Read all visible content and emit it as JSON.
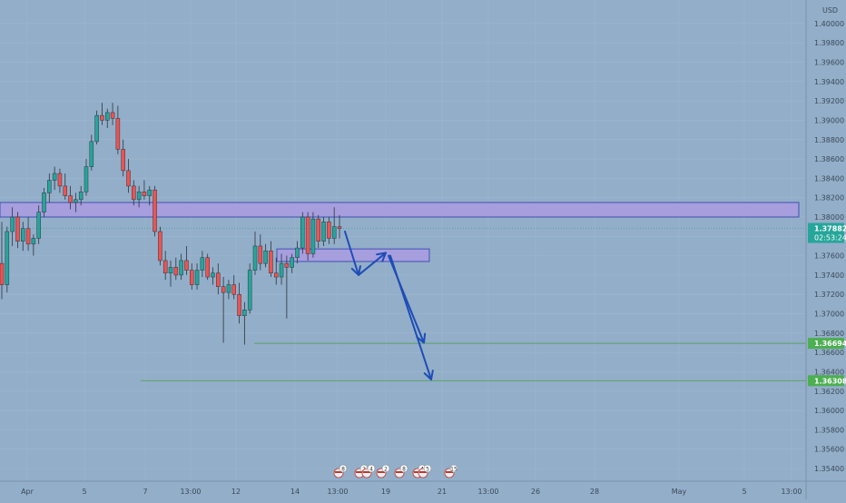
{
  "chart_data": {
    "type": "candlestick",
    "currency": "USD",
    "ylim": [
      1.353,
      1.4008
    ],
    "y_ticks": [
      "1.40000",
      "1.39800",
      "1.39600",
      "1.39400",
      "1.39200",
      "1.39000",
      "1.38800",
      "1.38600",
      "1.38400",
      "1.38200",
      "1.38000",
      "1.37800",
      "1.37600",
      "1.37400",
      "1.37200",
      "1.37000",
      "1.36800",
      "1.36600",
      "1.36400",
      "1.36200",
      "1.36000",
      "1.35800",
      "1.35600",
      "1.35400"
    ],
    "x_ticks": [
      "Apr",
      "5",
      "7",
      "13:00",
      "12",
      "14",
      "13:00",
      "19",
      "21",
      "13:00",
      "26",
      "28",
      "May",
      "5",
      "13:00"
    ],
    "price_labels": {
      "current": {
        "value": "1.37882",
        "countdown": "02:53:24",
        "price": 1.37882
      },
      "level_1": {
        "value": "1.36694",
        "price": 1.36694
      },
      "level_2": {
        "value": "1.36308",
        "price": 1.36308
      }
    },
    "zones": [
      {
        "name": "resistance-zone",
        "low": 1.38,
        "high": 1.3815
      },
      {
        "name": "support-zone",
        "low": 1.3754,
        "high": 1.3767
      }
    ],
    "candles": [
      [
        1.3752,
        1.3795,
        1.3715,
        1.373
      ],
      [
        1.373,
        1.379,
        1.3722,
        1.3785
      ],
      [
        1.3785,
        1.381,
        1.377,
        1.38
      ],
      [
        1.38,
        1.3805,
        1.3768,
        1.3775
      ],
      [
        1.3775,
        1.3795,
        1.3765,
        1.3788
      ],
      [
        1.3788,
        1.38,
        1.3765,
        1.3772
      ],
      [
        1.3772,
        1.3782,
        1.376,
        1.3778
      ],
      [
        1.3778,
        1.3812,
        1.3772,
        1.3805
      ],
      [
        1.3805,
        1.383,
        1.38,
        1.3825
      ],
      [
        1.3825,
        1.3845,
        1.3815,
        1.3838
      ],
      [
        1.3838,
        1.3852,
        1.3828,
        1.3845
      ],
      [
        1.3845,
        1.385,
        1.3825,
        1.3832
      ],
      [
        1.3832,
        1.3845,
        1.3818,
        1.3822
      ],
      [
        1.3822,
        1.3832,
        1.3808,
        1.3815
      ],
      [
        1.3815,
        1.3825,
        1.3805,
        1.3818
      ],
      [
        1.3818,
        1.3832,
        1.3812,
        1.3826
      ],
      [
        1.3826,
        1.386,
        1.3822,
        1.3852
      ],
      [
        1.3852,
        1.3885,
        1.3848,
        1.3878
      ],
      [
        1.3878,
        1.391,
        1.3875,
        1.3905
      ],
      [
        1.3905,
        1.3918,
        1.3895,
        1.39
      ],
      [
        1.39,
        1.3912,
        1.3892,
        1.3908
      ],
      [
        1.3908,
        1.3918,
        1.3895,
        1.3902
      ],
      [
        1.3902,
        1.3915,
        1.3865,
        1.387
      ],
      [
        1.387,
        1.388,
        1.3842,
        1.3848
      ],
      [
        1.3848,
        1.386,
        1.3825,
        1.3832
      ],
      [
        1.3832,
        1.3838,
        1.3812,
        1.3818
      ],
      [
        1.3818,
        1.3832,
        1.381,
        1.3826
      ],
      [
        1.3826,
        1.3838,
        1.3818,
        1.3822
      ],
      [
        1.3822,
        1.3832,
        1.3812,
        1.3828
      ],
      [
        1.3828,
        1.3832,
        1.378,
        1.3785
      ],
      [
        1.3785,
        1.379,
        1.375,
        1.3755
      ],
      [
        1.3755,
        1.3765,
        1.3735,
        1.3742
      ],
      [
        1.3742,
        1.3755,
        1.3728,
        1.3748
      ],
      [
        1.3748,
        1.3758,
        1.3735,
        1.374
      ],
      [
        1.374,
        1.3762,
        1.3735,
        1.3755
      ],
      [
        1.3755,
        1.377,
        1.374,
        1.3745
      ],
      [
        1.3745,
        1.3752,
        1.3725,
        1.373
      ],
      [
        1.373,
        1.3752,
        1.3725,
        1.3745
      ],
      [
        1.3745,
        1.3765,
        1.3738,
        1.3758
      ],
      [
        1.3758,
        1.3762,
        1.3735,
        1.3738
      ],
      [
        1.3738,
        1.3748,
        1.373,
        1.3742
      ],
      [
        1.3742,
        1.3752,
        1.372,
        1.3728
      ],
      [
        1.3728,
        1.3738,
        1.367,
        1.3722
      ],
      [
        1.3722,
        1.3735,
        1.3715,
        1.373
      ],
      [
        1.373,
        1.374,
        1.3715,
        1.372
      ],
      [
        1.372,
        1.3732,
        1.369,
        1.3698
      ],
      [
        1.3698,
        1.3712,
        1.3668,
        1.3704
      ],
      [
        1.3704,
        1.3752,
        1.37,
        1.3745
      ],
      [
        1.3745,
        1.3785,
        1.374,
        1.377
      ],
      [
        1.377,
        1.3782,
        1.3745,
        1.3752
      ],
      [
        1.3752,
        1.3772,
        1.3748,
        1.3765
      ],
      [
        1.3765,
        1.3775,
        1.3738,
        1.3742
      ],
      [
        1.3742,
        1.3758,
        1.373,
        1.3738
      ],
      [
        1.3738,
        1.3762,
        1.373,
        1.3752
      ],
      [
        1.3752,
        1.376,
        1.3695,
        1.3748
      ],
      [
        1.3748,
        1.3762,
        1.3742,
        1.3758
      ],
      [
        1.3758,
        1.3775,
        1.3752,
        1.3768
      ],
      [
        1.3768,
        1.3805,
        1.3762,
        1.38
      ],
      [
        1.38,
        1.3805,
        1.3755,
        1.3762
      ],
      [
        1.3762,
        1.3805,
        1.3758,
        1.3798
      ],
      [
        1.3798,
        1.3802,
        1.3768,
        1.3775
      ],
      [
        1.3775,
        1.38,
        1.377,
        1.3795
      ],
      [
        1.3795,
        1.38,
        1.3772,
        1.3778
      ],
      [
        1.3778,
        1.381,
        1.3772,
        1.379
      ],
      [
        1.379,
        1.3802,
        1.3778,
        1.3788
      ]
    ],
    "arrows": [
      {
        "name": "arrow-down-1",
        "points": [
          [
            1.3785,
            0
          ],
          [
            1.374,
            1
          ]
        ]
      },
      {
        "name": "arrow-up",
        "points": [
          [
            1.374,
            0
          ],
          [
            1.3763,
            1
          ]
        ]
      },
      {
        "name": "arrow-down-2",
        "points": [
          [
            1.376,
            0
          ],
          [
            1.367,
            1
          ]
        ]
      },
      {
        "name": "arrow-down-3",
        "points": [
          [
            1.376,
            0
          ],
          [
            1.3632,
            1
          ]
        ]
      }
    ],
    "events": [
      {
        "label": "8"
      },
      {
        "label": "2"
      },
      {
        "label": "4"
      },
      {
        "label": "2"
      },
      {
        "label": "8"
      },
      {
        "label": "4"
      },
      {
        "label": "5"
      },
      {
        "label": "15"
      }
    ]
  }
}
